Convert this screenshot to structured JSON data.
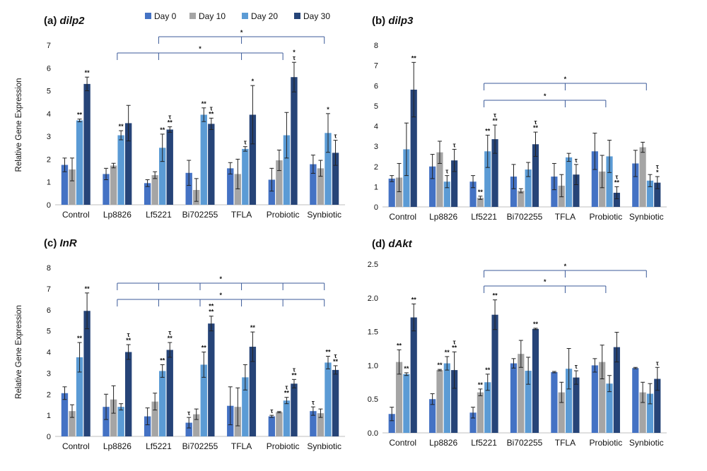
{
  "legend": {
    "entries": [
      {
        "label": "Day 0",
        "color": "#4472c4"
      },
      {
        "label": "Day 10",
        "color": "#a5a5a5"
      },
      {
        "label": "Day 20",
        "color": "#5b9bd5"
      },
      {
        "label": "Day 30",
        "color": "#264478"
      }
    ]
  },
  "chart_data": [
    {
      "type": "bar",
      "title": "(a) dilp2",
      "ylabel": "Relative Gene Expression",
      "ylim": [
        0,
        7
      ],
      "yticks": [
        0,
        1,
        2,
        3,
        4,
        5,
        6,
        7
      ],
      "categories": [
        "Control",
        "Lp8826",
        "Lf5221",
        "Bi702255",
        "TFLA",
        "Probiotic",
        "Synbiotic"
      ],
      "series": [
        {
          "name": "Day 0",
          "values": [
            1.75,
            1.35,
            0.95,
            1.4,
            1.6,
            1.1,
            1.78
          ],
          "errors": [
            0.3,
            0.25,
            0.15,
            0.55,
            0.25,
            0.5,
            0.4
          ],
          "labels": [
            "",
            "",
            "",
            "",
            "",
            "",
            ""
          ]
        },
        {
          "name": "Day 10",
          "values": [
            1.55,
            1.72,
            1.3,
            0.65,
            1.35,
            1.95,
            1.6
          ],
          "errors": [
            0.5,
            0.1,
            0.15,
            0.5,
            0.65,
            0.45,
            0.35
          ],
          "labels": [
            "",
            "",
            "",
            "",
            "",
            "",
            ""
          ]
        },
        {
          "name": "Day 20",
          "values": [
            3.7,
            3.05,
            2.5,
            3.95,
            2.45,
            3.05,
            3.15
          ],
          "errors": [
            0.06,
            0.2,
            0.6,
            0.3,
            0.1,
            1.0,
            0.85
          ],
          "labels": [
            "**",
            "**",
            "**",
            "**",
            "τ",
            "",
            "*"
          ]
        },
        {
          "name": "Day 30",
          "values": [
            5.3,
            3.58,
            3.3,
            3.55,
            3.95,
            5.6,
            2.28
          ],
          "errors": [
            0.3,
            0.78,
            0.12,
            0.25,
            1.28,
            0.65,
            0.55
          ],
          "labels": [
            "**",
            "",
            "τ\n**",
            "τ\n**",
            "*",
            "*\nτ",
            "τ"
          ]
        }
      ],
      "brackets": [
        {
          "from": "Lf5221",
          "to": "Synbiotic",
          "ticks": [
            "Lf5221",
            "TFLA",
            "Synbiotic"
          ],
          "label": "*"
        },
        {
          "from": "Lp8826",
          "to": "Probiotic",
          "ticks": [
            "Lp8826",
            "Lf5221",
            "TFLA",
            "Probiotic"
          ],
          "label": "*"
        }
      ]
    },
    {
      "type": "bar",
      "title": "(b) dilp3",
      "ylabel": "",
      "ylim": [
        0,
        8
      ],
      "yticks": [
        0,
        1,
        2,
        3,
        4,
        5,
        6,
        7,
        8
      ],
      "categories": [
        "Control",
        "Lp8826",
        "Lf5221",
        "Bi702255",
        "TFLA",
        "Probiotic",
        "Synbiotic"
      ],
      "series": [
        {
          "name": "Day 0",
          "values": [
            1.4,
            2.0,
            1.25,
            1.5,
            1.5,
            2.75,
            2.15
          ],
          "errors": [
            0.15,
            0.6,
            0.3,
            0.6,
            0.65,
            0.9,
            0.65
          ],
          "labels": [
            "",
            "",
            "",
            "",
            "",
            "",
            ""
          ]
        },
        {
          "name": "Day 10",
          "values": [
            1.45,
            2.7,
            0.45,
            0.8,
            1.05,
            1.75,
            2.95
          ],
          "errors": [
            0.7,
            0.55,
            0.08,
            0.1,
            0.55,
            0.8,
            0.25
          ],
          "labels": [
            "",
            "",
            "**",
            "",
            "",
            "",
            ""
          ]
        },
        {
          "name": "Day 20",
          "values": [
            2.85,
            1.25,
            2.75,
            1.85,
            2.45,
            2.5,
            1.3
          ],
          "errors": [
            1.3,
            0.3,
            0.8,
            0.35,
            0.2,
            0.8,
            0.3
          ],
          "labels": [
            "",
            "τ",
            "**",
            "",
            "",
            "",
            ""
          ]
        },
        {
          "name": "Day 30",
          "values": [
            5.8,
            2.3,
            3.35,
            3.1,
            1.6,
            0.7,
            1.2
          ],
          "errors": [
            1.35,
            0.55,
            0.7,
            0.6,
            0.5,
            0.3,
            0.3
          ],
          "labels": [
            "**",
            "τ",
            "τ\n**",
            "τ\n**",
            "τ",
            "τ\n**",
            "τ\n*"
          ]
        }
      ],
      "brackets": [
        {
          "from": "Lf5221",
          "to": "Synbiotic",
          "ticks": [
            "Lf5221",
            "TFLA",
            "Synbiotic"
          ],
          "label": "*"
        },
        {
          "from": "Lf5221",
          "to": "Probiotic",
          "ticks": [
            "Lf5221",
            "TFLA",
            "Probiotic"
          ],
          "label": "*"
        }
      ]
    },
    {
      "type": "bar",
      "title": "(c) InR",
      "ylabel": "Relative Gene Expression",
      "ylim": [
        0,
        8
      ],
      "yticks": [
        0,
        1,
        2,
        3,
        4,
        5,
        6,
        7,
        8
      ],
      "categories": [
        "Control",
        "Lp8826",
        "Lf5221",
        "Bi702255",
        "TFLA",
        "Probiotic",
        "Synbiotic"
      ],
      "series": [
        {
          "name": "Day 0",
          "values": [
            2.05,
            1.4,
            0.95,
            0.65,
            1.45,
            0.95,
            1.2
          ],
          "errors": [
            0.3,
            0.6,
            0.4,
            0.25,
            0.9,
            0.05,
            0.2
          ],
          "labels": [
            "",
            "",
            "",
            "τ",
            "",
            "τ",
            "τ"
          ]
        },
        {
          "name": "Day 10",
          "values": [
            1.2,
            1.75,
            1.65,
            1.05,
            1.4,
            1.15,
            1.1
          ],
          "errors": [
            0.3,
            0.65,
            0.4,
            0.25,
            0.9,
            0.03,
            0.2
          ],
          "labels": [
            "",
            "",
            "",
            "",
            "",
            "",
            ""
          ]
        },
        {
          "name": "Day 20",
          "values": [
            3.75,
            1.4,
            3.1,
            3.4,
            2.8,
            1.7,
            3.5
          ],
          "errors": [
            0.7,
            0.15,
            0.3,
            0.6,
            0.6,
            0.15,
            0.3
          ],
          "labels": [
            "**",
            "",
            "**",
            "**",
            "",
            "τ\n**",
            "**"
          ]
        },
        {
          "name": "Day 30",
          "values": [
            5.95,
            4.0,
            4.1,
            5.35,
            4.25,
            2.5,
            3.15
          ],
          "errors": [
            0.85,
            0.35,
            0.35,
            0.35,
            0.7,
            0.2,
            0.2
          ],
          "labels": [
            "**",
            "τ\n**",
            "τ\n**",
            "**\n**",
            "**",
            "τ\n**",
            "τ\n**"
          ]
        }
      ],
      "brackets": [
        {
          "from": "Lp8826",
          "to": "Synbiotic",
          "ticks": [
            "Lp8826",
            "Lf5221",
            "Bi702255",
            "TFLA",
            "Probiotic",
            "Synbiotic"
          ],
          "label": "*"
        },
        {
          "from": "Lp8826",
          "to": "Synbiotic",
          "ticks": [
            "Lp8826",
            "Lf5221",
            "Bi702255",
            "TFLA",
            "Probiotic",
            "Synbiotic"
          ],
          "label": "*"
        }
      ]
    },
    {
      "type": "bar",
      "title": "(d) dAkt",
      "ylabel": "",
      "ylim": [
        0,
        2.5
      ],
      "yticks": [
        "0.0",
        "0.5",
        "1.0",
        "1.5",
        "2.0",
        "2.5"
      ],
      "categories": [
        "Control",
        "Lp8826",
        "Lf5221",
        "Bi702255",
        "TFLA",
        "Probiotic",
        "Synbiotic"
      ],
      "series": [
        {
          "name": "Day 0",
          "values": [
            0.28,
            0.5,
            0.3,
            1.03,
            0.9,
            1.0,
            0.96
          ],
          "errors": [
            0.1,
            0.08,
            0.08,
            0.07,
            0.01,
            0.1,
            0.01
          ],
          "labels": [
            "",
            "",
            "",
            "",
            "",
            "",
            ""
          ]
        },
        {
          "name": "Day 10",
          "values": [
            1.05,
            0.93,
            0.6,
            1.17,
            0.6,
            1.05,
            0.6
          ],
          "errors": [
            0.18,
            0.01,
            0.05,
            0.2,
            0.15,
            0.25,
            0.15
          ],
          "labels": [
            "**",
            "**",
            "**",
            "",
            "",
            "",
            ""
          ]
        },
        {
          "name": "Day 20",
          "values": [
            0.87,
            1.03,
            0.75,
            0.92,
            0.95,
            0.73,
            0.58
          ],
          "errors": [
            0.02,
            0.1,
            0.12,
            0.2,
            0.3,
            0.12,
            0.15
          ],
          "labels": [
            "**",
            "**",
            "**",
            "",
            "",
            "",
            ""
          ]
        },
        {
          "name": "Day 30",
          "values": [
            1.71,
            0.93,
            1.75,
            1.54,
            0.82,
            1.27,
            0.8
          ],
          "errors": [
            0.2,
            0.27,
            0.22,
            0.01,
            0.1,
            0.22,
            0.17
          ],
          "labels": [
            "**",
            "τ\n**",
            "**",
            "**",
            "τ",
            "",
            "τ"
          ]
        }
      ],
      "brackets": [
        {
          "from": "Lf5221",
          "to": "Synbiotic",
          "ticks": [
            "Lf5221",
            "TFLA",
            "Synbiotic"
          ],
          "label": "*"
        },
        {
          "from": "Lf5221",
          "to": "Probiotic",
          "ticks": [
            "Lf5221",
            "TFLA",
            "Probiotic"
          ],
          "label": "*"
        }
      ]
    }
  ]
}
